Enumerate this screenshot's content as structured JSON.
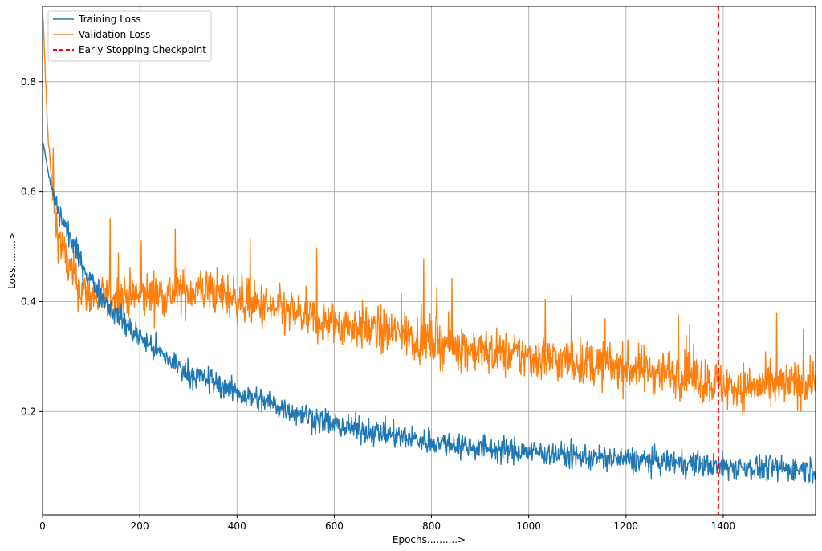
{
  "chart_data": {
    "type": "line",
    "title": "",
    "xlabel": "Epochs..........>",
    "ylabel": "Loss.........>",
    "xlim": [
      0,
      1590
    ],
    "ylim": [
      0.012,
      0.937
    ],
    "xticks": [
      0,
      200,
      400,
      600,
      800,
      1000,
      1200,
      1400
    ],
    "xtick_labels": [
      "0",
      "200",
      "400",
      "600",
      "800",
      "1000",
      "1200",
      "1400"
    ],
    "yticks": [
      0.2,
      0.4,
      0.6,
      0.8
    ],
    "ytick_labels": [
      "0.2",
      "0.4",
      "0.6",
      "0.8"
    ],
    "grid": true,
    "legend_position": "top-left",
    "checkpoint": {
      "label": "Early Stopping Checkpoint",
      "x": 1390,
      "color": "#ff0000",
      "style": "dashed"
    },
    "series": [
      {
        "name": "Training Loss",
        "color": "#1f77b4",
        "x": [
          0,
          2,
          5,
          10,
          15,
          20,
          30,
          40,
          50,
          60,
          80,
          100,
          120,
          150,
          180,
          200,
          250,
          300,
          350,
          400,
          450,
          500,
          550,
          600,
          650,
          700,
          750,
          800,
          850,
          900,
          950,
          1000,
          1050,
          1100,
          1150,
          1200,
          1250,
          1300,
          1350,
          1390,
          1400,
          1450,
          1500,
          1550,
          1590
        ],
        "y": [
          0.64,
          0.69,
          0.67,
          0.64,
          0.62,
          0.6,
          0.57,
          0.55,
          0.53,
          0.51,
          0.47,
          0.44,
          0.41,
          0.38,
          0.35,
          0.335,
          0.3,
          0.27,
          0.255,
          0.235,
          0.22,
          0.205,
          0.19,
          0.175,
          0.168,
          0.16,
          0.152,
          0.145,
          0.14,
          0.135,
          0.13,
          0.128,
          0.123,
          0.118,
          0.115,
          0.112,
          0.11,
          0.107,
          0.104,
          0.1,
          0.1,
          0.098,
          0.097,
          0.096,
          0.095
        ],
        "noise": 0.022
      },
      {
        "name": "Validation Loss",
        "color": "#ff7f0e",
        "x": [
          0,
          2,
          5,
          10,
          15,
          20,
          25,
          30,
          40,
          50,
          60,
          80,
          100,
          130,
          160,
          200,
          250,
          300,
          350,
          400,
          450,
          500,
          550,
          600,
          650,
          700,
          750,
          800,
          850,
          900,
          950,
          1000,
          1050,
          1100,
          1150,
          1200,
          1250,
          1300,
          1350,
          1390,
          1400,
          1450,
          1500,
          1550,
          1590
        ],
        "y": [
          0.92,
          0.9,
          0.83,
          0.72,
          0.66,
          0.6,
          0.56,
          0.53,
          0.5,
          0.47,
          0.45,
          0.42,
          0.41,
          0.405,
          0.41,
          0.41,
          0.415,
          0.42,
          0.42,
          0.405,
          0.39,
          0.38,
          0.37,
          0.36,
          0.355,
          0.345,
          0.34,
          0.33,
          0.32,
          0.31,
          0.305,
          0.3,
          0.295,
          0.29,
          0.285,
          0.28,
          0.275,
          0.27,
          0.26,
          0.25,
          0.245,
          0.245,
          0.245,
          0.25,
          0.26
        ],
        "noise": 0.04
      }
    ]
  }
}
